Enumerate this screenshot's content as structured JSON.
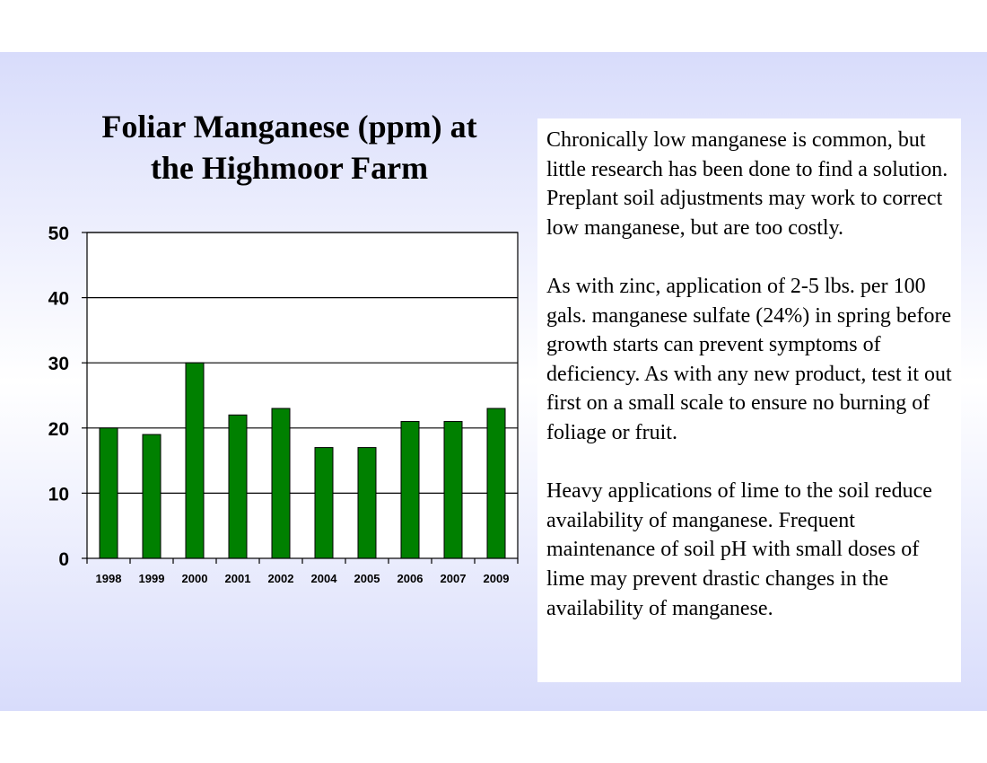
{
  "chart_data": {
    "type": "bar",
    "title_lines": [
      "Foliar Manganese (ppm) at",
      "the Highmoor Farm"
    ],
    "categories": [
      "1998",
      "1999",
      "2000",
      "2001",
      "2002",
      "2004",
      "2005",
      "2006",
      "2007",
      "2009"
    ],
    "values": [
      20,
      19,
      30,
      22,
      23,
      17,
      17,
      21,
      21,
      23
    ],
    "yticks": [
      0,
      10,
      20,
      30,
      40,
      50
    ],
    "ylim": [
      0,
      50
    ],
    "xlabel": "",
    "ylabel": "",
    "grid": true,
    "bar_color": "#008000"
  },
  "text_panel": {
    "paragraphs": [
      "Chronically low manganese is common, but little research has been done to find a solution.  Preplant soil adjustments may work to correct low manganese, but are too costly.",
      "As with zinc, application of 2-5 lbs. per 100 gals. manganese sulfate (24%) in spring before growth starts can prevent symptoms of deficiency.  As with any new product, test it out first on a small scale to ensure no burning of foliage or fruit.",
      "Heavy applications of lime to the soil reduce availability of manganese. Frequent maintenance of soil pH with small doses of lime may prevent drastic changes in the availability of manganese."
    ]
  }
}
